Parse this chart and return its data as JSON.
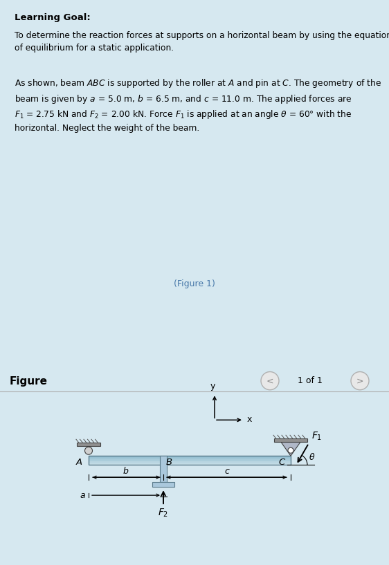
{
  "bg_color": "#d6e8f0",
  "white_color": "#ffffff",
  "text_color": "#000000",
  "title": "Learning Goal:",
  "para1": "To determine the reaction forces at supports on a horizontal beam by using the equations\nof equilibrium for a static application.",
  "figure1_text": "(Figure 1)",
  "figure_label": "Figure",
  "page_label": "1 of 1",
  "beam_color_top": "#c8dfe8",
  "beam_color_bot": "#8ab8cc",
  "beam_edge_color": "#5a7a8a",
  "nav_circle_color": "#cccccc",
  "dim_arrow_color": "#333333",
  "force_color": "#111111"
}
